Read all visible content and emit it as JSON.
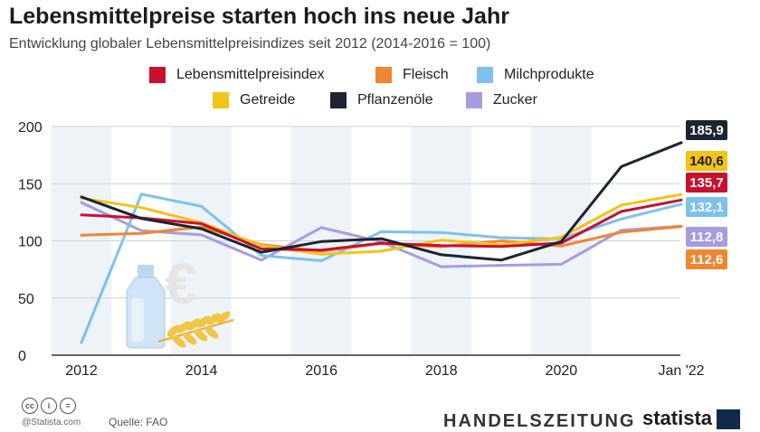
{
  "title": "Lebensmittelpreise starten hoch ins neue Jahr",
  "subtitle": "Entwicklung globaler Lebensmittelpreisindizes seit 2012 (2014-2016 = 100)",
  "footer": {
    "credit": "@Statista.com",
    "source": "Quelle: FAO",
    "publisher": "HANDELSZEITUNG",
    "brand": "statista"
  },
  "icons": [
    "cc-icon",
    "by-icon",
    "nd-icon",
    "milk-bottle-icon",
    "euro-icon",
    "wheat-icon"
  ],
  "chart_data": {
    "type": "line",
    "title": "Lebensmittelpreise starten hoch ins neue Jahr",
    "subtitle": "Entwicklung globaler Lebensmittelpreisindizes seit 2012 (2014-2016 = 100)",
    "xlabel": "",
    "ylabel": "",
    "x": [
      "2012",
      "2013",
      "2014",
      "2015",
      "2016",
      "2017",
      "2018",
      "2019",
      "2020",
      "2021",
      "Jan '22"
    ],
    "x_tick_labels": [
      "2012",
      "2014",
      "2016",
      "2018",
      "2020",
      "Jan '22"
    ],
    "y_ticks": [
      0,
      50,
      100,
      150,
      200
    ],
    "ylim": [
      0,
      200
    ],
    "grid": true,
    "legend_position": "top",
    "series": [
      {
        "name": "Lebensmittelpreisindex",
        "color": "#c8102e",
        "values": [
          122.8,
          120.1,
          115.0,
          93.0,
          91.9,
          98.0,
          95.9,
          95.1,
          98.1,
          125.7,
          135.7
        ],
        "end_label": "135,7"
      },
      {
        "name": "Fleisch",
        "color": "#f0862e",
        "values": [
          105.0,
          106.6,
          112.2,
          96.7,
          91.0,
          97.7,
          94.9,
          100.0,
          95.5,
          107.6,
          112.6
        ],
        "end_label": "112,6"
      },
      {
        "name": "Milchprodukte",
        "color": "#7ec1ec",
        "values": [
          11.0,
          140.9,
          130.2,
          87.1,
          82.6,
          108.0,
          107.3,
          102.8,
          101.8,
          119.1,
          132.1
        ],
        "end_label": "132,1"
      },
      {
        "name": "Getreide",
        "color": "#f0c419",
        "values": [
          137.4,
          129.1,
          115.8,
          95.9,
          88.3,
          91.0,
          100.6,
          96.6,
          103.1,
          131.2,
          140.6
        ],
        "end_label": "140,6"
      },
      {
        "name": "Pflanzenöle",
        "color": "#1b2430",
        "values": [
          138.4,
          119.5,
          110.6,
          90.0,
          99.4,
          101.9,
          87.8,
          83.2,
          99.4,
          164.9,
          185.9
        ],
        "end_label": "185,9"
      },
      {
        "name": "Zucker",
        "color": "#a89be0",
        "values": [
          133.5,
          108.9,
          105.2,
          83.2,
          111.6,
          99.1,
          77.4,
          78.6,
          79.5,
          109.3,
          112.8
        ],
        "end_label": "112,8"
      }
    ]
  }
}
